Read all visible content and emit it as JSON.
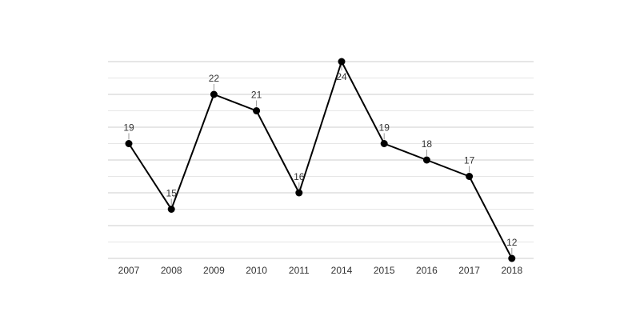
{
  "chart_data": {
    "type": "line",
    "title": "",
    "xlabel": "",
    "ylabel": "",
    "categories": [
      "2007",
      "2008",
      "2009",
      "2010",
      "2011",
      "2014",
      "2015",
      "2016",
      "2017",
      "2018"
    ],
    "values": [
      19,
      15,
      22,
      21,
      16,
      24,
      19,
      18,
      17,
      12
    ],
    "ylim": [
      12,
      24
    ],
    "y_tick_labels_visible": false,
    "grid": true,
    "legend": "none",
    "data_labels": true,
    "line_color": "#000000",
    "point_color": "#000000"
  }
}
